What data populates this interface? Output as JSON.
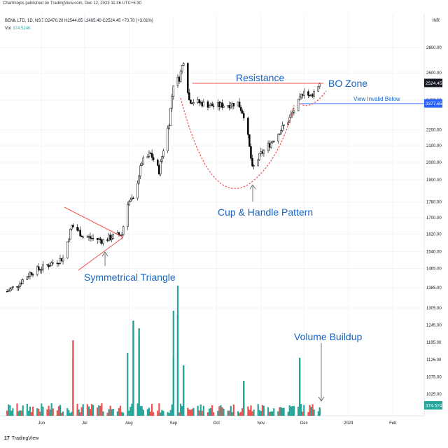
{
  "header": {
    "published": "Chartmojos published on TradingView.com, Dec 12, 2023 11:46 UTC+5:30",
    "symbol_line": "BEML LTD, 1D, NSE O2470.20 H2544.65 L2465.40 C2524.45 +73.70 (+3.01%)",
    "volume_label": "Vol",
    "volume_value": "374.524K",
    "currency": "INR"
  },
  "footer": {
    "logo": "17",
    "brand": "TradingView"
  },
  "chart_data": {
    "type": "candlestick",
    "symbol": "BEML LTD",
    "interval": "1D",
    "exchange": "NSE",
    "ohlc_last": {
      "open": 2470.2,
      "high": 2544.65,
      "low": 2465.4,
      "close": 2524.45,
      "change": 73.7,
      "change_pct": 3.01
    },
    "y_axis": {
      "scale": "log",
      "ticks": [
        1305,
        1385,
        1465,
        1540,
        1620,
        1700,
        1780,
        1900,
        2000,
        2100,
        2200,
        2400,
        2600,
        2800
      ]
    },
    "y_axis_volume_ticks": [
      "1305.00",
      "1245.00",
      "1185.00",
      "1125.00",
      "1075.00",
      "1025.00"
    ],
    "y_axis_price_labels": [
      "2800.00",
      "2600.00",
      "2400.00",
      "2200.00",
      "2100.00",
      "2000.00",
      "1900.00",
      "1780.00",
      "1700.00",
      "1620.00",
      "1540.00",
      "1465.00",
      "1385.00"
    ],
    "x_axis": {
      "ticks": [
        "Jun",
        "Jul",
        "Aug",
        "Sep",
        "Oct",
        "Nov",
        "Dec",
        "2024",
        "Feb"
      ]
    },
    "price_tags": [
      {
        "label": "2524.45",
        "value": 2524.45,
        "style": "dark"
      },
      {
        "label": "2377.65",
        "value": 2377.65,
        "style": "blue"
      }
    ],
    "volume_tag": {
      "label": "374.524K"
    },
    "levels": [
      {
        "name": "Resistance",
        "value": 2540,
        "color": "#ef5350"
      },
      {
        "name": "View Invalid Below",
        "value": 2377.65,
        "color": "#2962ff"
      }
    ],
    "annotations": [
      "Resistance",
      "BO Zone",
      "View Invalid Below",
      "Cup & Handle Pattern",
      "Symmetrical Triangle",
      "Volume Buildup"
    ],
    "price_path": [
      [
        "2023-05-08",
        1370
      ],
      [
        "2023-05-16",
        1400
      ],
      [
        "2023-05-25",
        1450
      ],
      [
        "2023-06-02",
        1470
      ],
      [
        "2023-06-09",
        1490
      ],
      [
        "2023-06-16",
        1510
      ],
      [
        "2023-06-22",
        1660
      ],
      [
        "2023-06-26",
        1640
      ],
      [
        "2023-06-30",
        1610
      ],
      [
        "2023-07-07",
        1600
      ],
      [
        "2023-07-14",
        1590
      ],
      [
        "2023-07-21",
        1610
      ],
      [
        "2023-07-27",
        1620
      ],
      [
        "2023-07-31",
        1780
      ],
      [
        "2023-08-04",
        1790
      ],
      [
        "2023-08-10",
        2000
      ],
      [
        "2023-08-16",
        2050
      ],
      [
        "2023-08-22",
        1950
      ],
      [
        "2023-08-29",
        2250
      ],
      [
        "2023-09-01",
        2520
      ],
      [
        "2023-09-05",
        2560
      ],
      [
        "2023-09-08",
        2700
      ],
      [
        "2023-09-12",
        2400
      ],
      [
        "2023-09-20",
        2380
      ],
      [
        "2023-09-29",
        2360
      ],
      [
        "2023-10-10",
        2370
      ],
      [
        "2023-10-16",
        2380
      ],
      [
        "2023-10-20",
        2300
      ],
      [
        "2023-10-23",
        2150
      ],
      [
        "2023-10-26",
        1960
      ],
      [
        "2023-11-01",
        2050
      ],
      [
        "2023-11-08",
        2120
      ],
      [
        "2023-11-13",
        2180
      ],
      [
        "2023-11-20",
        2260
      ],
      [
        "2023-11-28",
        2400
      ],
      [
        "2023-12-01",
        2480
      ],
      [
        "2023-12-05",
        2420
      ],
      [
        "2023-12-08",
        2460
      ],
      [
        "2023-12-12",
        2524.45
      ]
    ],
    "volume": [
      [
        "2023-06-23",
        1140
      ],
      [
        "2023-07-31",
        1150
      ],
      [
        "2023-08-04",
        1220
      ],
      [
        "2023-08-08",
        1190
      ],
      [
        "2023-09-01",
        1250
      ],
      [
        "2023-09-04",
        1310
      ],
      [
        "2023-09-08",
        1120
      ],
      [
        "2023-10-20",
        1080
      ],
      [
        "2023-11-28",
        1130
      ],
      [
        "2023-12-12",
        1015
      ]
    ]
  }
}
